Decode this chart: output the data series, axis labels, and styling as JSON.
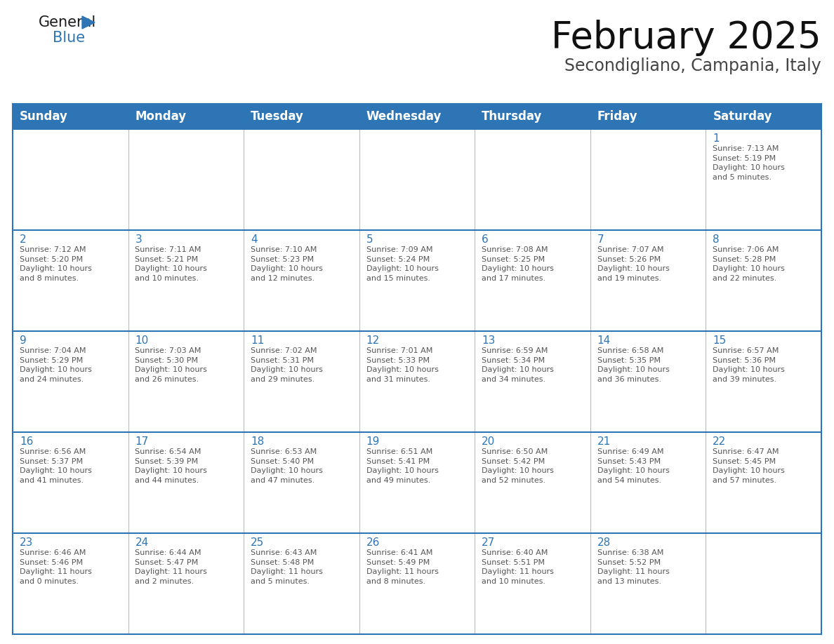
{
  "title": "February 2025",
  "subtitle": "Secondigliano, Campania, Italy",
  "header_bg": "#2E75B6",
  "header_text_color": "#FFFFFF",
  "border_color": "#2E75B6",
  "cell_bg": "#FFFFFF",
  "text_color_day": "#2E75B6",
  "text_color_info": "#555555",
  "day_headers": [
    "Sunday",
    "Monday",
    "Tuesday",
    "Wednesday",
    "Thursday",
    "Friday",
    "Saturday"
  ],
  "weeks": [
    [
      {
        "day": "",
        "info": ""
      },
      {
        "day": "",
        "info": ""
      },
      {
        "day": "",
        "info": ""
      },
      {
        "day": "",
        "info": ""
      },
      {
        "day": "",
        "info": ""
      },
      {
        "day": "",
        "info": ""
      },
      {
        "day": "1",
        "info": "Sunrise: 7:13 AM\nSunset: 5:19 PM\nDaylight: 10 hours\nand 5 minutes."
      }
    ],
    [
      {
        "day": "2",
        "info": "Sunrise: 7:12 AM\nSunset: 5:20 PM\nDaylight: 10 hours\nand 8 minutes."
      },
      {
        "day": "3",
        "info": "Sunrise: 7:11 AM\nSunset: 5:21 PM\nDaylight: 10 hours\nand 10 minutes."
      },
      {
        "day": "4",
        "info": "Sunrise: 7:10 AM\nSunset: 5:23 PM\nDaylight: 10 hours\nand 12 minutes."
      },
      {
        "day": "5",
        "info": "Sunrise: 7:09 AM\nSunset: 5:24 PM\nDaylight: 10 hours\nand 15 minutes."
      },
      {
        "day": "6",
        "info": "Sunrise: 7:08 AM\nSunset: 5:25 PM\nDaylight: 10 hours\nand 17 minutes."
      },
      {
        "day": "7",
        "info": "Sunrise: 7:07 AM\nSunset: 5:26 PM\nDaylight: 10 hours\nand 19 minutes."
      },
      {
        "day": "8",
        "info": "Sunrise: 7:06 AM\nSunset: 5:28 PM\nDaylight: 10 hours\nand 22 minutes."
      }
    ],
    [
      {
        "day": "9",
        "info": "Sunrise: 7:04 AM\nSunset: 5:29 PM\nDaylight: 10 hours\nand 24 minutes."
      },
      {
        "day": "10",
        "info": "Sunrise: 7:03 AM\nSunset: 5:30 PM\nDaylight: 10 hours\nand 26 minutes."
      },
      {
        "day": "11",
        "info": "Sunrise: 7:02 AM\nSunset: 5:31 PM\nDaylight: 10 hours\nand 29 minutes."
      },
      {
        "day": "12",
        "info": "Sunrise: 7:01 AM\nSunset: 5:33 PM\nDaylight: 10 hours\nand 31 minutes."
      },
      {
        "day": "13",
        "info": "Sunrise: 6:59 AM\nSunset: 5:34 PM\nDaylight: 10 hours\nand 34 minutes."
      },
      {
        "day": "14",
        "info": "Sunrise: 6:58 AM\nSunset: 5:35 PM\nDaylight: 10 hours\nand 36 minutes."
      },
      {
        "day": "15",
        "info": "Sunrise: 6:57 AM\nSunset: 5:36 PM\nDaylight: 10 hours\nand 39 minutes."
      }
    ],
    [
      {
        "day": "16",
        "info": "Sunrise: 6:56 AM\nSunset: 5:37 PM\nDaylight: 10 hours\nand 41 minutes."
      },
      {
        "day": "17",
        "info": "Sunrise: 6:54 AM\nSunset: 5:39 PM\nDaylight: 10 hours\nand 44 minutes."
      },
      {
        "day": "18",
        "info": "Sunrise: 6:53 AM\nSunset: 5:40 PM\nDaylight: 10 hours\nand 47 minutes."
      },
      {
        "day": "19",
        "info": "Sunrise: 6:51 AM\nSunset: 5:41 PM\nDaylight: 10 hours\nand 49 minutes."
      },
      {
        "day": "20",
        "info": "Sunrise: 6:50 AM\nSunset: 5:42 PM\nDaylight: 10 hours\nand 52 minutes."
      },
      {
        "day": "21",
        "info": "Sunrise: 6:49 AM\nSunset: 5:43 PM\nDaylight: 10 hours\nand 54 minutes."
      },
      {
        "day": "22",
        "info": "Sunrise: 6:47 AM\nSunset: 5:45 PM\nDaylight: 10 hours\nand 57 minutes."
      }
    ],
    [
      {
        "day": "23",
        "info": "Sunrise: 6:46 AM\nSunset: 5:46 PM\nDaylight: 11 hours\nand 0 minutes."
      },
      {
        "day": "24",
        "info": "Sunrise: 6:44 AM\nSunset: 5:47 PM\nDaylight: 11 hours\nand 2 minutes."
      },
      {
        "day": "25",
        "info": "Sunrise: 6:43 AM\nSunset: 5:48 PM\nDaylight: 11 hours\nand 5 minutes."
      },
      {
        "day": "26",
        "info": "Sunrise: 6:41 AM\nSunset: 5:49 PM\nDaylight: 11 hours\nand 8 minutes."
      },
      {
        "day": "27",
        "info": "Sunrise: 6:40 AM\nSunset: 5:51 PM\nDaylight: 11 hours\nand 10 minutes."
      },
      {
        "day": "28",
        "info": "Sunrise: 6:38 AM\nSunset: 5:52 PM\nDaylight: 11 hours\nand 13 minutes."
      },
      {
        "day": "",
        "info": ""
      }
    ]
  ],
  "logo_color_general": "#1a1a1a",
  "logo_color_blue": "#2E75B6",
  "logo_triangle_color": "#2E75B6",
  "title_fontsize": 38,
  "subtitle_fontsize": 17,
  "header_fontsize": 12,
  "day_num_fontsize": 11,
  "info_fontsize": 8
}
